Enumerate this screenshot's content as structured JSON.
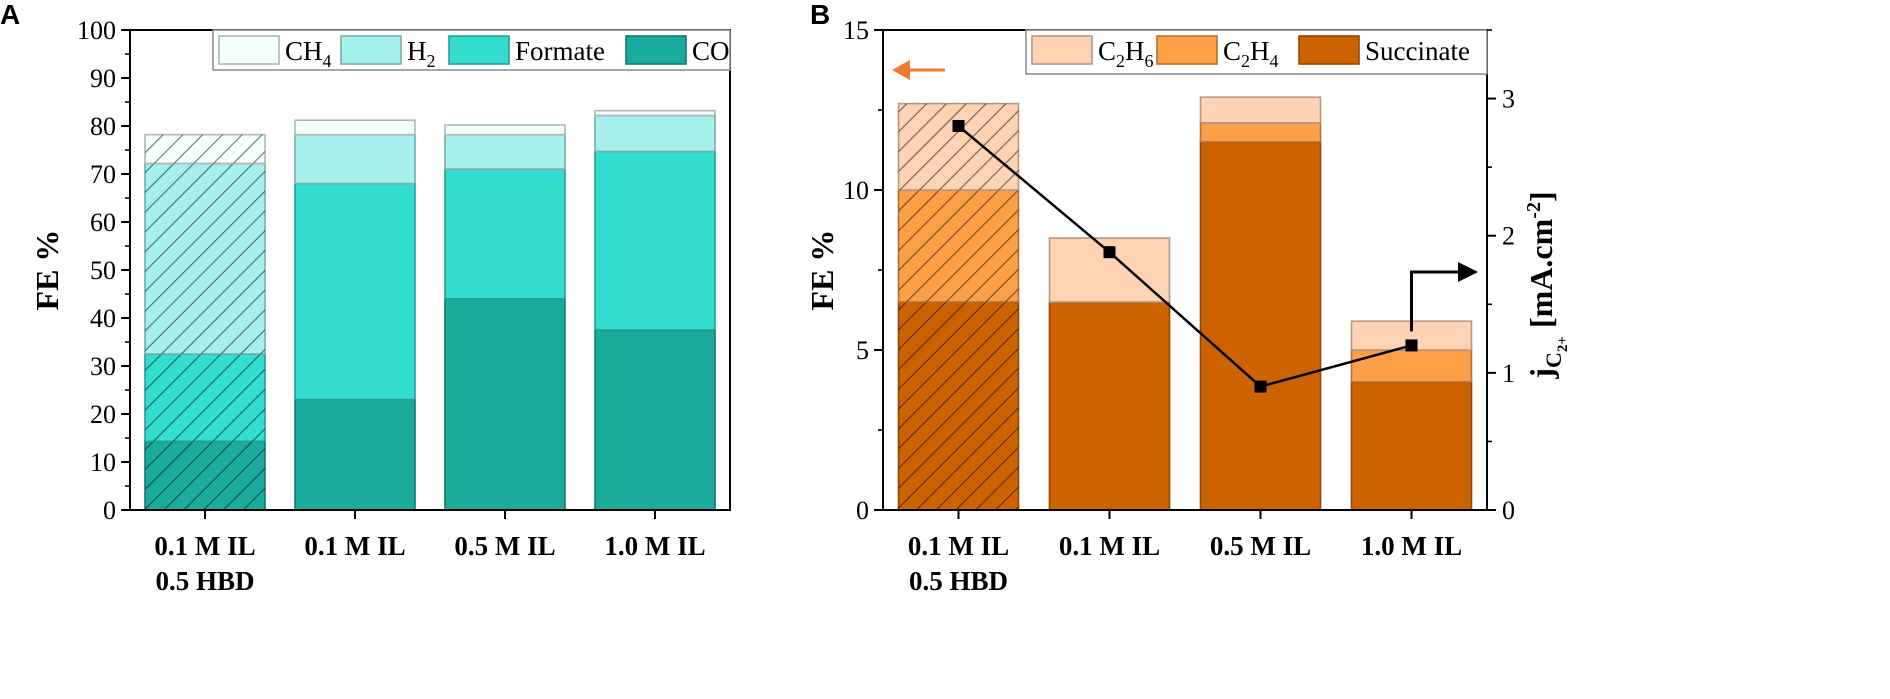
{
  "colors": {
    "ch4": "#f3fffc",
    "h2": "#a6efec",
    "formate": "#33ddd0",
    "co": "#1aab9c",
    "c2h6": "#fdd3b4",
    "c2h4": "#fc9f46",
    "succinate": "#cc6200",
    "line": "#000000",
    "arrow_left": "#ef7b2d",
    "arrow_right": "#000000"
  },
  "chart_data": [
    {
      "panel": "A",
      "type": "bar",
      "stacked": true,
      "ylabel": "FE %",
      "ylim": [
        0,
        100
      ],
      "yticks": [
        "0",
        "10",
        "20",
        "30",
        "40",
        "50",
        "60",
        "70",
        "80",
        "90",
        "100"
      ],
      "category_lines": [
        [
          "0.1 M IL",
          "0.5 HBD"
        ],
        [
          "0.1 M IL"
        ],
        [
          "0.5 M IL"
        ],
        [
          "1.0 M IL"
        ]
      ],
      "hatched": [
        true,
        false,
        false,
        false
      ],
      "legend": {
        "position": "top-right",
        "entries": [
          {
            "key": "ch4",
            "base": "CH",
            "sub": "4"
          },
          {
            "key": "h2",
            "base": "H",
            "sub": "2"
          },
          {
            "key": "formate",
            "base": "Formate",
            "sub": ""
          },
          {
            "key": "co",
            "base": "CO",
            "sub": ""
          }
        ]
      },
      "series": [
        {
          "key": "co",
          "name": "CO",
          "values": [
            14.3,
            23.0,
            44.0,
            37.5
          ]
        },
        {
          "key": "formate",
          "name": "Formate",
          "values": [
            18.2,
            45.0,
            27.0,
            37.2
          ]
        },
        {
          "key": "h2",
          "name": "H2",
          "values": [
            39.7,
            10.2,
            7.2,
            7.5
          ]
        },
        {
          "key": "ch4",
          "name": "CH4",
          "values": [
            6.0,
            3.0,
            2.0,
            1.0
          ]
        }
      ]
    },
    {
      "panel": "B",
      "type": "bar",
      "stacked": true,
      "ylabel": "FE %",
      "ylim": [
        0,
        15
      ],
      "yticks": [
        "0",
        "5",
        "10",
        "15"
      ],
      "y2label_base": "j",
      "y2label_sub": "C",
      "y2label_subsub": "2+",
      "y2label_rest": " [mA.cm",
      "y2label_sup": "-2",
      "y2label_end": "]",
      "y2lim": [
        0,
        3.5
      ],
      "y2ticks": [
        "0",
        "1",
        "2",
        "3"
      ],
      "category_lines": [
        [
          "0.1 M IL",
          "0.5 HBD"
        ],
        [
          "0.1 M IL"
        ],
        [
          "0.5 M IL"
        ],
        [
          "1.0 M IL"
        ]
      ],
      "hatched": [
        true,
        false,
        false,
        false
      ],
      "legend": {
        "position": "top-left",
        "entries": [
          {
            "key": "c2h6",
            "base": "C",
            "sub": "2",
            "base2": "H",
            "sub2": "6"
          },
          {
            "key": "c2h4",
            "base": "C",
            "sub": "2",
            "base2": "H",
            "sub2": "4"
          },
          {
            "key": "succinate",
            "base": "Succinate",
            "sub": "",
            "base2": "",
            "sub2": ""
          }
        ]
      },
      "series": [
        {
          "key": "succinate",
          "name": "Succinate",
          "values": [
            6.5,
            6.5,
            11.5,
            4.0
          ]
        },
        {
          "key": "c2h4",
          "name": "C2H4",
          "values": [
            3.5,
            0.0,
            0.6,
            1.0
          ]
        },
        {
          "key": "c2h6",
          "name": "C2H6",
          "values": [
            2.7,
            2.0,
            0.8,
            0.9
          ]
        }
      ],
      "line_series": {
        "name": "jC2+",
        "axis": "right",
        "values": [
          2.8,
          1.88,
          0.9,
          1.2
        ]
      }
    }
  ]
}
